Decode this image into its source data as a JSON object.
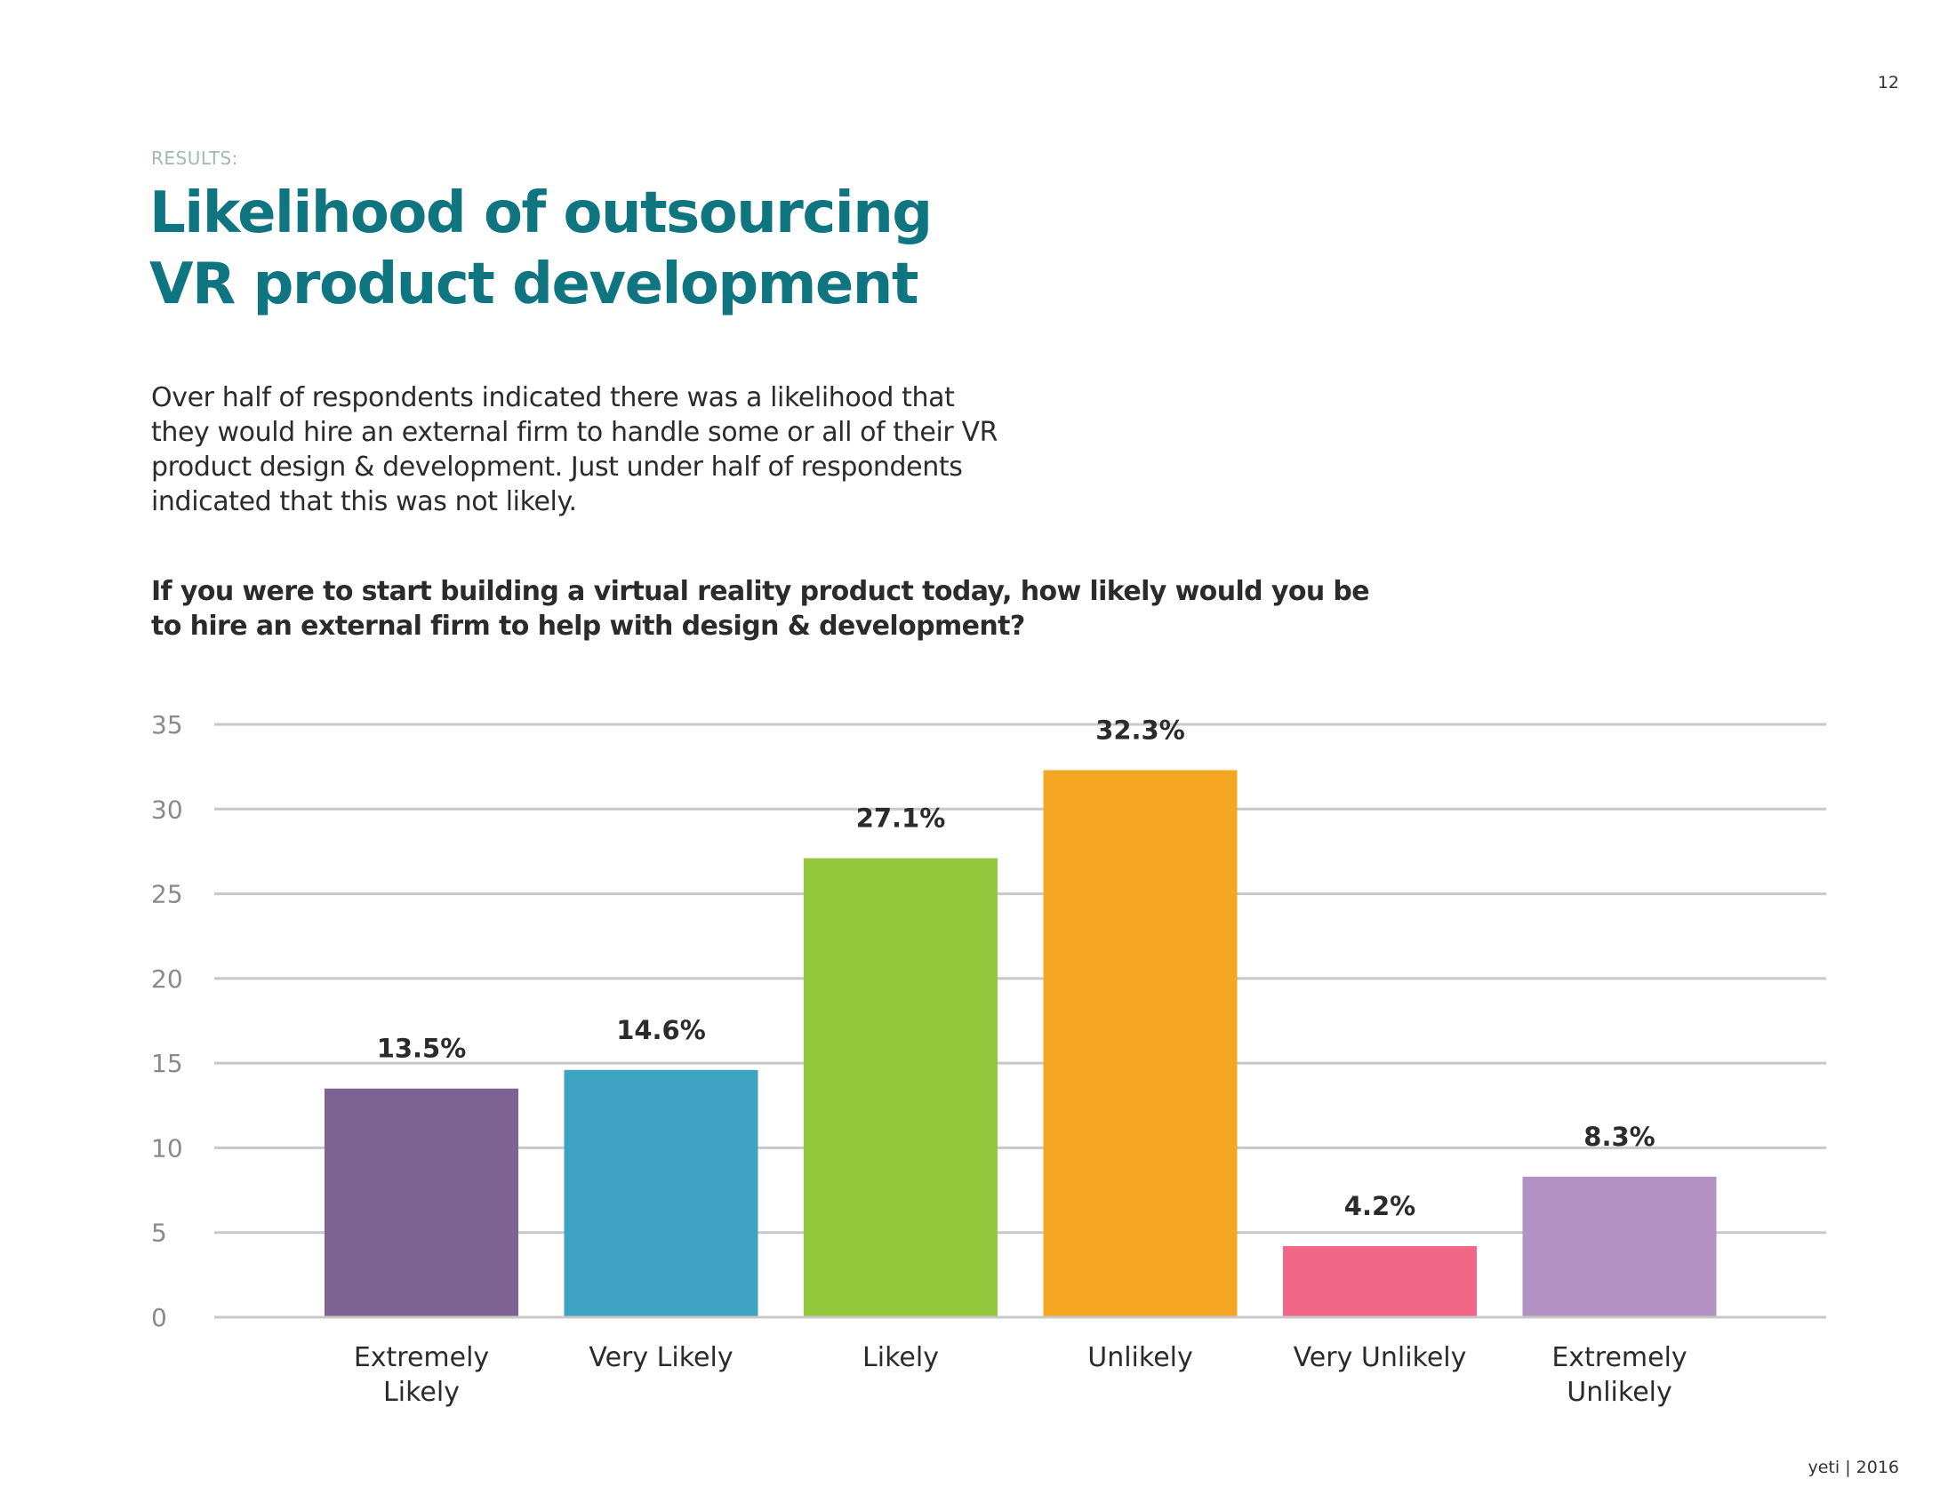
{
  "page_number": "12",
  "section_label": "RESULTS:",
  "title_lines": [
    "Likelihood of outsourcing",
    "VR product development"
  ],
  "body_lines": [
    "Over half of respondents indicated there was a likelihood that",
    "they would hire an external firm to handle some or all of their VR",
    "product design & development. Just under half of respondents",
    "indicated that this was not likely."
  ],
  "question_lines": [
    "If you were to start building a virtual reality product today, how likely would you be",
    "to hire an external firm to help with design & development?"
  ],
  "footer": "yeti | 2016",
  "colors": {
    "title": "#0f7580",
    "grid": "#c8c8c8"
  },
  "chart_data": {
    "type": "bar",
    "categories": [
      [
        "Extremely",
        "Likely"
      ],
      [
        "Very Likely"
      ],
      [
        "Likely"
      ],
      [
        "Unlikely"
      ],
      [
        "Very Unlikely"
      ],
      [
        "Extremely",
        "Unlikely"
      ]
    ],
    "values": [
      13.5,
      14.6,
      27.1,
      32.3,
      4.2,
      8.3
    ],
    "data_labels": [
      "13.5%",
      "14.6%",
      "27.1%",
      "32.3%",
      "4.2%",
      "8.3%"
    ],
    "colors": [
      "#7e6393",
      "#3ea2c3",
      "#95c93d",
      "#f5a623",
      "#f06788",
      "#b491c3"
    ],
    "yticks": [
      "0",
      "5",
      "10",
      "15",
      "20",
      "25",
      "30",
      "35"
    ],
    "ylim": [
      0,
      35
    ],
    "grid": true,
    "title": "",
    "xlabel": "",
    "ylabel": ""
  }
}
